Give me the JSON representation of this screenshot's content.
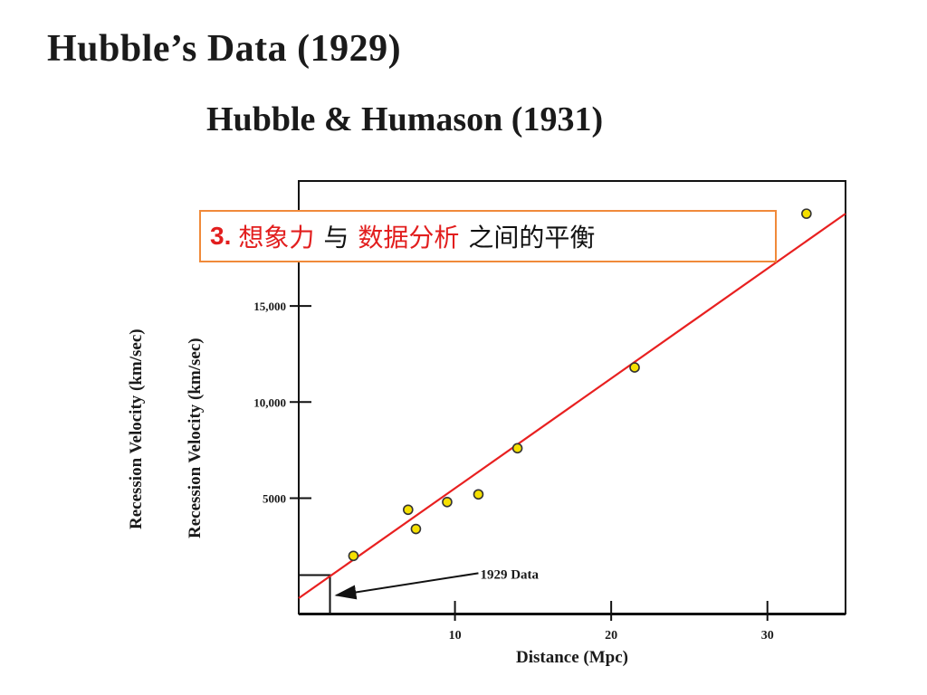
{
  "title": "Hubble’s Data (1929)",
  "subtitle": "Hubble & Humason (1931)",
  "callout": {
    "number": "3.",
    "part1": "想象力",
    "part2": "与",
    "part3": "数据分析",
    "part4": "之间的平衡"
  },
  "chart_data": {
    "type": "scatter",
    "xlabel": "Distance (Mpc)",
    "ylabel_outer": "Recession Velocity (km/sec)",
    "ylabel_inner": "Recession Velocity (km/sec)",
    "xlim": [
      0,
      35
    ],
    "ylim": [
      -1000,
      21500
    ],
    "x_ticks": [
      {
        "value": 10,
        "label": "10"
      },
      {
        "value": 20,
        "label": "20"
      },
      {
        "value": 30,
        "label": "30"
      }
    ],
    "y_ticks": [
      {
        "value": 5000,
        "label": "5000"
      },
      {
        "value": 10000,
        "label": "10,000"
      },
      {
        "value": 15000,
        "label": "15,000"
      }
    ],
    "points": [
      {
        "x": 3.5,
        "y": 2000
      },
      {
        "x": 7.0,
        "y": 4400
      },
      {
        "x": 7.5,
        "y": 3400
      },
      {
        "x": 9.5,
        "y": 4800
      },
      {
        "x": 11.5,
        "y": 5200
      },
      {
        "x": 14.0,
        "y": 7600
      },
      {
        "x": 21.5,
        "y": 11800
      },
      {
        "x": 32.5,
        "y": 19800
      }
    ],
    "fit_line": {
      "x": [
        0,
        35
      ],
      "y": [
        -200,
        19800
      ],
      "color": "#e82020"
    },
    "inset_1929": {
      "xmax": 2.0,
      "ymax": 1000
    },
    "annotation": {
      "text": "1929 Data",
      "x_from": 11.5,
      "y_from": 1100,
      "x_to": 2.4,
      "y_to": -50
    },
    "marker_color": "#f5e000"
  }
}
